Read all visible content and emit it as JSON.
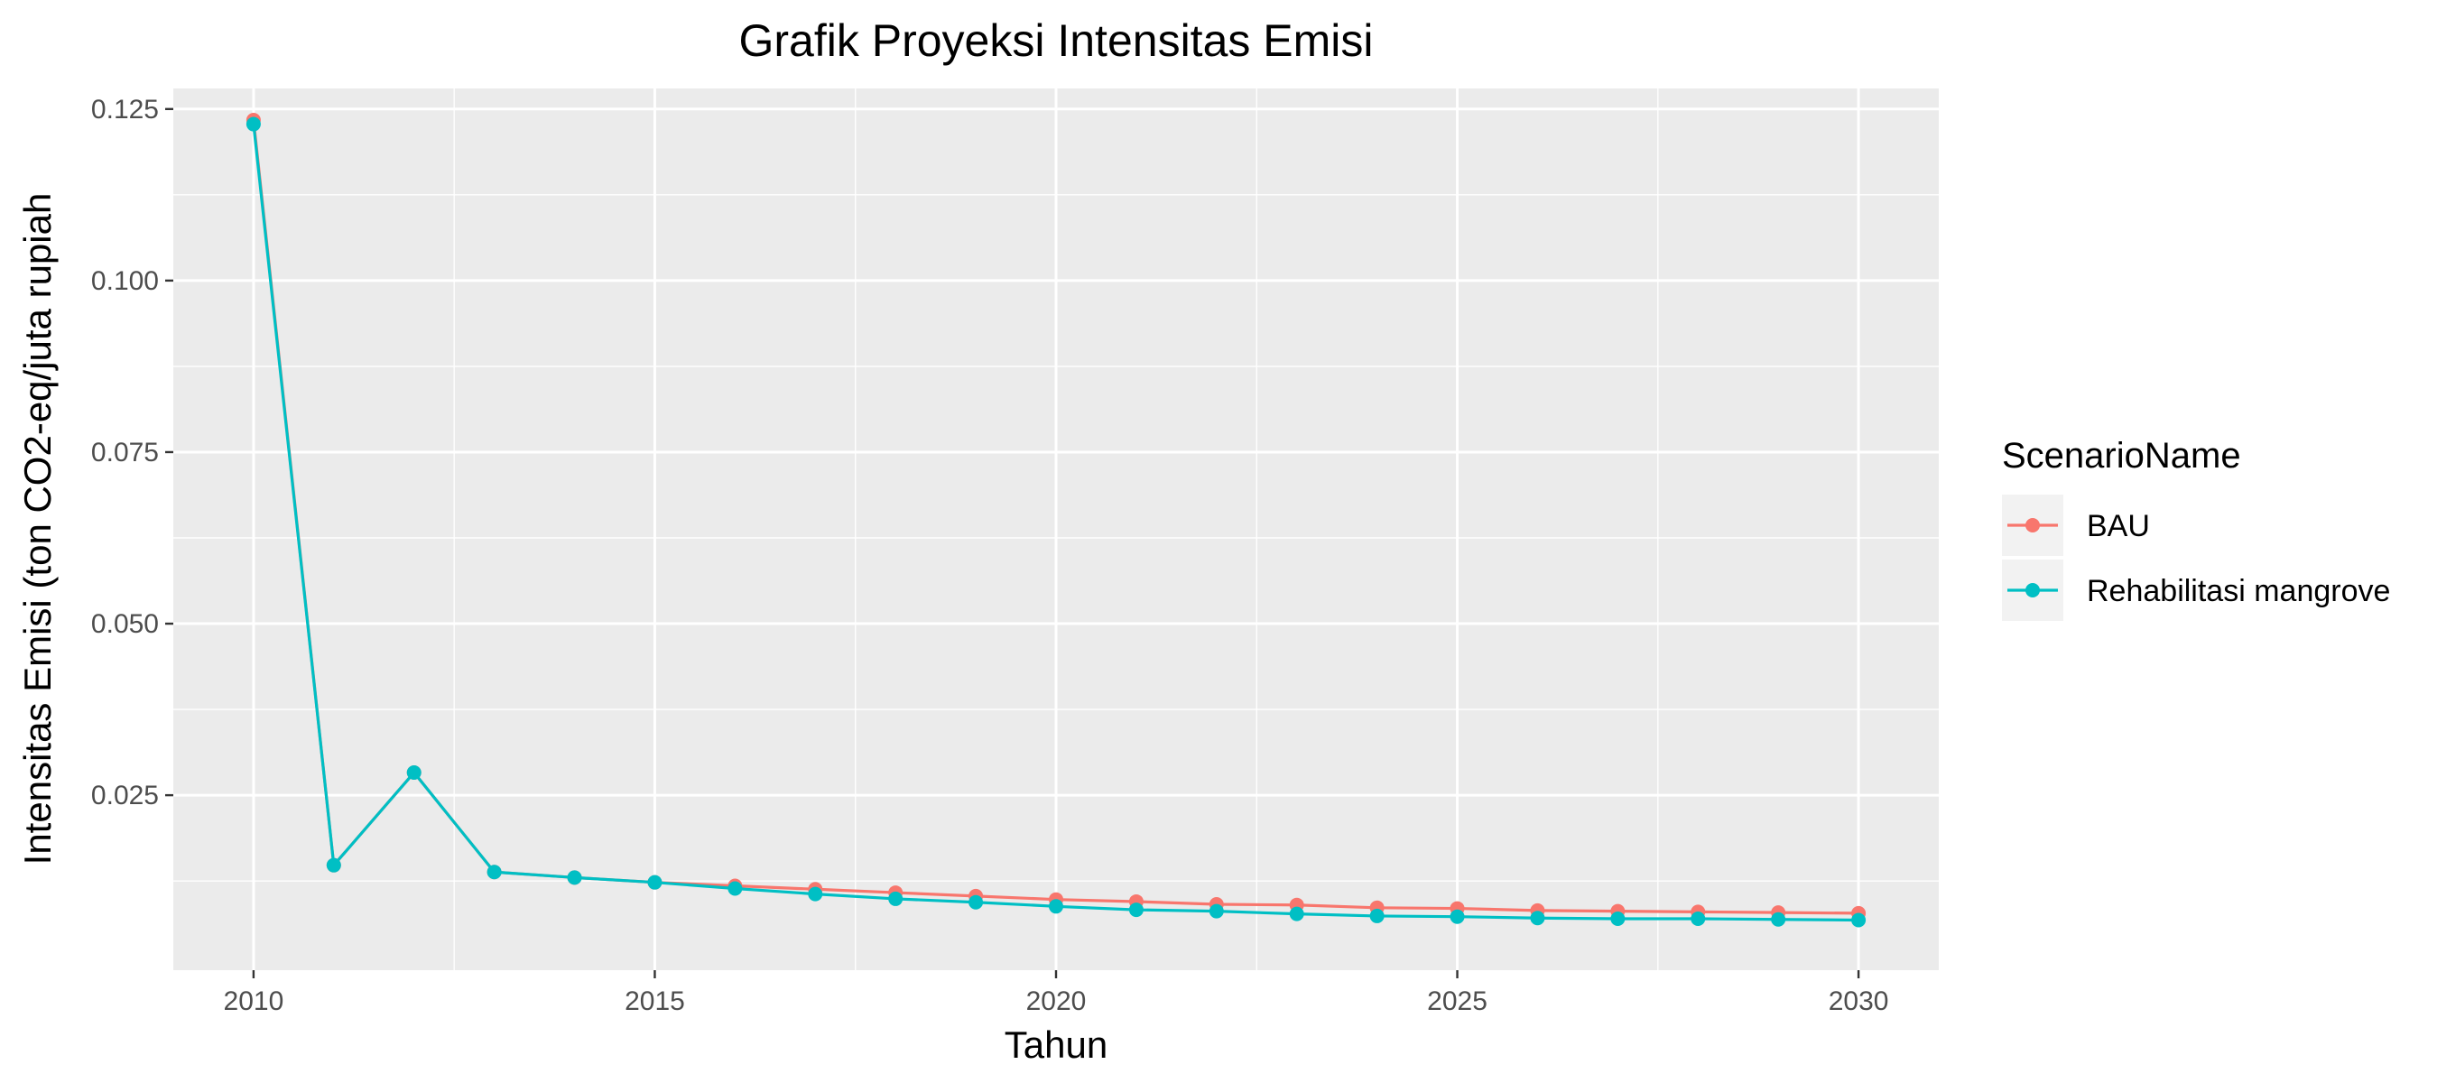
{
  "chart_data": {
    "type": "line",
    "title": "Grafik Proyeksi Intensitas Emisi",
    "xlabel": "Tahun",
    "ylabel": "Intensitas Emisi (ton CO2-eq/juta rupiah",
    "x": [
      2010,
      2011,
      2012,
      2013,
      2014,
      2015,
      2016,
      2017,
      2018,
      2019,
      2020,
      2021,
      2022,
      2023,
      2024,
      2025,
      2026,
      2027,
      2028,
      2029,
      2030
    ],
    "xlim": [
      2009,
      2031
    ],
    "ylim": [
      -0.0005,
      0.128
    ],
    "xticks": [
      2010,
      2015,
      2020,
      2025,
      2030
    ],
    "xtick_labels": [
      "2010",
      "2015",
      "2020",
      "2025",
      "2030"
    ],
    "yticks": [
      0.025,
      0.05,
      0.075,
      0.1,
      0.125
    ],
    "ytick_labels": [
      "0.025",
      "0.050",
      "0.075",
      "0.100",
      "0.125"
    ],
    "grid": true,
    "legend": {
      "title": "ScenarioName",
      "position": "right"
    },
    "series": [
      {
        "name": "BAU",
        "color": "#F8766D",
        "values": [
          0.1234,
          0.0148,
          0.0283,
          0.0138,
          0.013,
          0.0123,
          0.0118,
          0.0113,
          0.0108,
          0.0103,
          0.0098,
          0.0095,
          0.0091,
          0.009,
          0.0086,
          0.0085,
          0.0082,
          0.0081,
          0.008,
          0.0079,
          0.0078
        ]
      },
      {
        "name": "Rehabilitasi mangrove",
        "color": "#00BFC4",
        "values": [
          0.1228,
          0.0148,
          0.0283,
          0.0138,
          0.013,
          0.0123,
          0.0114,
          0.0106,
          0.0099,
          0.0094,
          0.0088,
          0.0083,
          0.0081,
          0.0077,
          0.0074,
          0.0073,
          0.0071,
          0.007,
          0.007,
          0.0069,
          0.0068
        ]
      }
    ]
  },
  "style": {
    "panel_background": "#EBEBEB",
    "grid_color": "#FFFFFF",
    "tick_color": "#333333",
    "text_color": "#000000",
    "tick_text_color": "#4D4D4D"
  }
}
